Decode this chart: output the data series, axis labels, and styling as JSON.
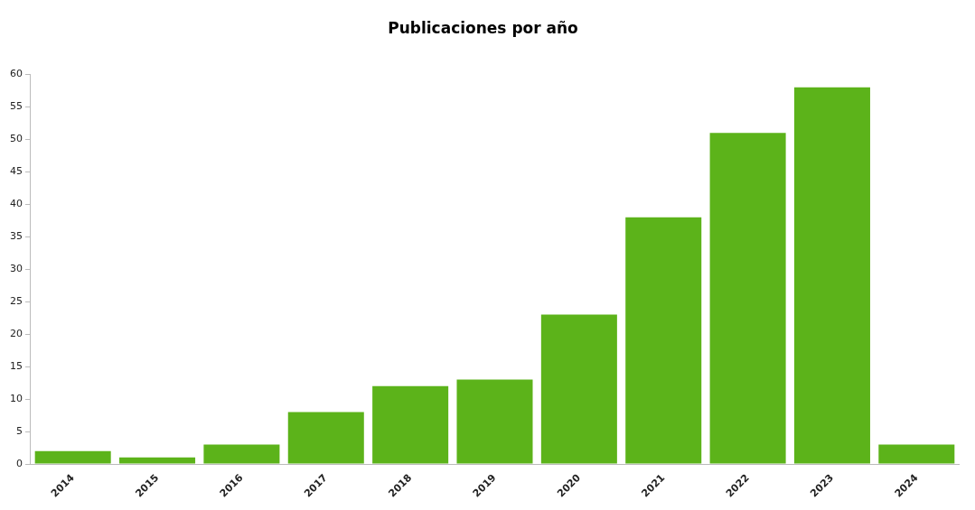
{
  "chart_data": {
    "type": "bar",
    "title": "Publicaciones por año",
    "categories": [
      "2014",
      "2015",
      "2016",
      "2017",
      "2018",
      "2019",
      "2020",
      "2021",
      "2022",
      "2023",
      "2024"
    ],
    "values": [
      2,
      1,
      3,
      8,
      12,
      13,
      23,
      38,
      51,
      58,
      3
    ],
    "color": "#5cb31a",
    "ylim": [
      0,
      60
    ],
    "yticks": [
      0,
      5,
      10,
      15,
      20,
      25,
      30,
      35,
      40,
      45,
      50,
      55,
      60
    ],
    "grid": false,
    "legend": false
  }
}
